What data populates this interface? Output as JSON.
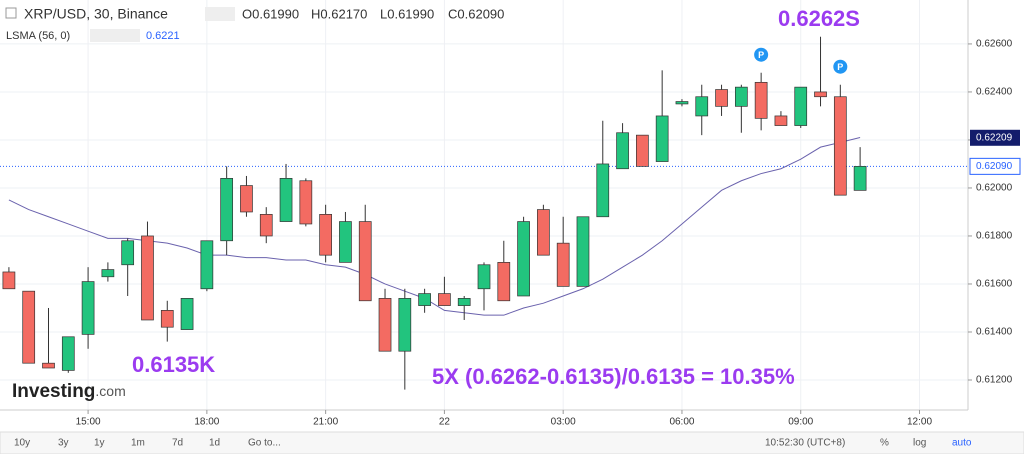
{
  "chart_data": {
    "type": "candlestick",
    "title": "XRP/USD, 30, Binance",
    "ohlc_header": [
      "O0.61990",
      "H0.62170",
      "L0.61990",
      "C0.62090"
    ],
    "up_color": "#22c47e",
    "down_color": "#f36b62",
    "open": [
      0.6165,
      0.6157,
      0.6127,
      0.6124,
      0.6139,
      0.6163,
      0.6168,
      0.618,
      0.6149,
      0.6141,
      0.6158,
      0.6178,
      0.6201,
      0.6189,
      0.6186,
      0.6203,
      0.6189,
      0.6169,
      0.6186,
      0.6154,
      0.6132,
      0.6151,
      0.6156,
      0.6151,
      0.6158,
      0.6169,
      0.6155,
      0.6191,
      0.6177,
      0.6159,
      0.6188,
      0.6208,
      0.6222,
      0.6211,
      0.6235,
      0.623,
      0.6241,
      0.6234,
      0.6244,
      0.623,
      0.6226,
      0.624,
      0.6238,
      0.6199
    ],
    "high": [
      0.6167,
      0.6157,
      0.615,
      0.6138,
      0.6167,
      0.6169,
      0.6179,
      0.6186,
      0.6153,
      0.6154,
      0.6178,
      0.6209,
      0.6205,
      0.6192,
      0.621,
      0.6204,
      0.6193,
      0.619,
      0.6193,
      0.6158,
      0.6158,
      0.6158,
      0.6163,
      0.6155,
      0.6169,
      0.6178,
      0.6188,
      0.6193,
      0.6188,
      0.6188,
      0.6228,
      0.6227,
      0.6222,
      0.6249,
      0.6237,
      0.6243,
      0.6243,
      0.6243,
      0.6248,
      0.6232,
      0.6242,
      0.6263,
      0.6243,
      0.6217
    ],
    "low": [
      0.6158,
      0.6127,
      0.6125,
      0.6123,
      0.6133,
      0.6161,
      0.6155,
      0.6145,
      0.6136,
      0.6141,
      0.6157,
      0.6172,
      0.6188,
      0.6177,
      0.6186,
      0.6184,
      0.6169,
      0.6169,
      0.6153,
      0.6132,
      0.6116,
      0.6148,
      0.6151,
      0.6145,
      0.6149,
      0.6153,
      0.6155,
      0.6172,
      0.6159,
      0.6159,
      0.6188,
      0.6208,
      0.6209,
      0.6211,
      0.6234,
      0.6222,
      0.623,
      0.6223,
      0.6224,
      0.6226,
      0.6225,
      0.6234,
      0.6197,
      0.6199
    ],
    "close": [
      0.6158,
      0.6127,
      0.6125,
      0.6138,
      0.6161,
      0.6166,
      0.6178,
      0.6145,
      0.6142,
      0.6154,
      0.6178,
      0.6204,
      0.619,
      0.618,
      0.6204,
      0.6185,
      0.6172,
      0.6186,
      0.6153,
      0.6132,
      0.6154,
      0.6156,
      0.6151,
      0.6154,
      0.6168,
      0.6153,
      0.6186,
      0.6172,
      0.6159,
      0.6188,
      0.621,
      0.6223,
      0.6209,
      0.623,
      0.6236,
      0.6238,
      0.6234,
      0.6242,
      0.6229,
      0.6226,
      0.6242,
      0.6238,
      0.6197,
      0.6209
    ],
    "indicator": {
      "name": "LSMA (56, 0)",
      "value": 0.6221,
      "color": "#6a62ad",
      "values": [
        0.6195,
        0.6191,
        0.6188,
        0.6185,
        0.6182,
        0.6179,
        0.6179,
        0.6178,
        0.6177,
        0.6175,
        0.6172,
        0.6172,
        0.6171,
        0.6171,
        0.617,
        0.617,
        0.6168,
        0.6167,
        0.6164,
        0.616,
        0.6157,
        0.6154,
        0.6149,
        0.6148,
        0.6147,
        0.6147,
        0.615,
        0.6152,
        0.6155,
        0.6158,
        0.6162,
        0.6167,
        0.6172,
        0.6178,
        0.6185,
        0.6192,
        0.6199,
        0.6203,
        0.6206,
        0.6208,
        0.6212,
        0.6217,
        0.6219,
        0.6221
      ]
    },
    "indicator_marker": {
      "value": 0.62209,
      "label": "0.62209"
    },
    "last_price": {
      "value": 0.6209,
      "label": "0.62090"
    },
    "ylim": [
      0.61075,
      0.62783
    ],
    "yticks": [
      {
        "value": 0.612,
        "label": "0.61200"
      },
      {
        "value": 0.614,
        "label": "0.61400"
      },
      {
        "value": 0.616,
        "label": "0.61600"
      },
      {
        "value": 0.618,
        "label": "0.61800"
      },
      {
        "value": 0.62,
        "label": "0.62000"
      },
      {
        "value": 0.622,
        "label": "0.62200"
      },
      {
        "value": 0.624,
        "label": "0.62400"
      },
      {
        "value": 0.626,
        "label": "0.62600"
      }
    ],
    "xlim": [
      -0.45,
      48.45
    ],
    "xticks": [
      {
        "value": 4,
        "label": "15:00"
      },
      {
        "value": 10,
        "label": "18:00"
      },
      {
        "value": 16,
        "label": "21:00"
      },
      {
        "value": 22,
        "label": "22"
      },
      {
        "value": 28,
        "label": "03:00"
      },
      {
        "value": 34,
        "label": "06:00"
      },
      {
        "value": 40,
        "label": "09:00"
      },
      {
        "value": 46,
        "label": "12:00"
      }
    ],
    "grid": true,
    "markers": [
      "P",
      "P"
    ],
    "annotations": [
      "0.6262S",
      "0.6135K",
      "5X (0.6262-0.6135)/0.6135 = 10.35%"
    ],
    "logo": [
      "Investing",
      ".com"
    ],
    "toolbar": [
      "10y",
      "3y",
      "1y",
      "1m",
      "7d",
      "1d",
      "Go to...",
      "10:52:30 (UTC+8)",
      "%",
      "log",
      "auto"
    ]
  }
}
